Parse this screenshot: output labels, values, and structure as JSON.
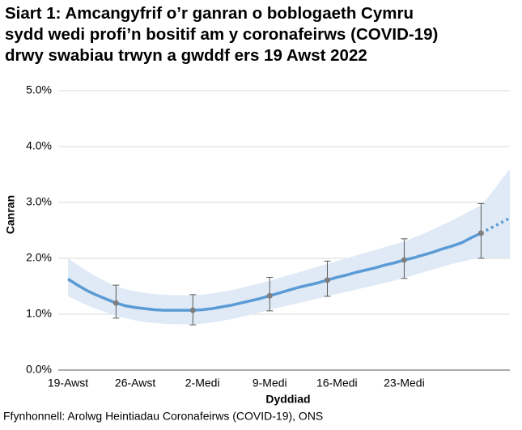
{
  "chart_data": {
    "type": "line",
    "title_lines": [
      "Siart 1: Amcangyfrif o’r ganran o boblogaeth Cymru",
      "sydd wedi profi’n bositif am y coronafeirws (COVID-19)",
      "drwy swabiau trwyn a gwddf ers 19 Awst 2022"
    ],
    "y_label": "Canran",
    "x_label": "Dyddiad",
    "source": "Ffynhonnell: Arolwg Heintiadau Coronafeirws (COVID-19), ONS",
    "categories": [
      "19-Awst",
      null,
      null,
      null,
      null,
      null,
      null,
      "26-Awst",
      null,
      null,
      null,
      null,
      null,
      null,
      "2-Medi",
      null,
      null,
      null,
      null,
      null,
      null,
      "9-Medi",
      null,
      null,
      null,
      null,
      null,
      null,
      "16-Medi",
      null,
      null,
      null,
      null,
      null,
      null,
      "23-Medi",
      null,
      null,
      null,
      null,
      null,
      null,
      null,
      null,
      null,
      null,
      null
    ],
    "ylim": [
      0,
      5
    ],
    "yticks": [
      {
        "value": 0,
        "label": "0.0%"
      },
      {
        "value": 1,
        "label": "1.0%"
      },
      {
        "value": 2,
        "label": "2.0%"
      },
      {
        "value": 3,
        "label": "3.0%"
      },
      {
        "value": 4,
        "label": "4.0%"
      },
      {
        "value": 5,
        "label": "5.0%"
      }
    ],
    "grid": true,
    "series": [
      {
        "color": "#5b9bd5",
        "style": "solid",
        "values": [
          1.63,
          1.52,
          1.42,
          1.34,
          1.27,
          1.2,
          1.15,
          1.12,
          1.1,
          1.08,
          1.07,
          1.07,
          1.07,
          1.07,
          1.08,
          1.1,
          1.13,
          1.16,
          1.2,
          1.24,
          1.28,
          1.33,
          1.38,
          1.43,
          1.48,
          1.52,
          1.56,
          1.61,
          1.66,
          1.7,
          1.75,
          1.79,
          1.83,
          1.88,
          1.92,
          1.97,
          2.01,
          2.06,
          2.11,
          2.17,
          2.22,
          2.28,
          2.37,
          2.45,
          null,
          null,
          null
        ]
      },
      {
        "color": "#5b9bd5",
        "style": "dotted",
        "values": [
          null,
          null,
          null,
          null,
          null,
          null,
          null,
          null,
          null,
          null,
          null,
          null,
          null,
          null,
          null,
          null,
          null,
          null,
          null,
          null,
          null,
          null,
          null,
          null,
          null,
          null,
          null,
          null,
          null,
          null,
          null,
          null,
          null,
          null,
          null,
          null,
          null,
          null,
          null,
          null,
          null,
          null,
          null,
          2.45,
          2.54,
          2.63,
          2.72
        ]
      }
    ],
    "band": {
      "color": "#dfeaf6",
      "upper": [
        2.0,
        1.88,
        1.77,
        1.67,
        1.58,
        1.5,
        1.45,
        1.41,
        1.38,
        1.36,
        1.35,
        1.34,
        1.34,
        1.34,
        1.35,
        1.37,
        1.4,
        1.43,
        1.47,
        1.51,
        1.55,
        1.6,
        1.65,
        1.7,
        1.75,
        1.8,
        1.85,
        1.9,
        1.95,
        2.0,
        2.05,
        2.1,
        2.15,
        2.2,
        2.25,
        2.3,
        2.37,
        2.44,
        2.52,
        2.6,
        2.68,
        2.77,
        2.86,
        2.95,
        3.15,
        3.38,
        3.6
      ],
      "lower": [
        1.32,
        1.24,
        1.16,
        1.09,
        1.03,
        0.97,
        0.93,
        0.89,
        0.86,
        0.84,
        0.83,
        0.82,
        0.82,
        0.82,
        0.83,
        0.85,
        0.88,
        0.91,
        0.95,
        0.99,
        1.03,
        1.08,
        1.12,
        1.16,
        1.2,
        1.24,
        1.28,
        1.32,
        1.36,
        1.4,
        1.44,
        1.48,
        1.52,
        1.56,
        1.6,
        1.65,
        1.7,
        1.75,
        1.8,
        1.85,
        1.9,
        1.94,
        1.98,
        2.0,
        2.01,
        2.01,
        2.01
      ]
    },
    "error_bars": {
      "color": "#7f7f7f",
      "values": [
        null,
        null,
        null,
        null,
        null,
        1.2,
        null,
        null,
        null,
        null,
        null,
        null,
        null,
        1.07,
        null,
        null,
        null,
        null,
        null,
        null,
        null,
        1.33,
        null,
        null,
        null,
        null,
        null,
        1.61,
        null,
        null,
        null,
        null,
        null,
        null,
        null,
        1.97,
        null,
        null,
        null,
        null,
        null,
        null,
        null,
        2.45,
        null,
        null,
        null
      ],
      "lower": [
        null,
        null,
        null,
        null,
        null,
        0.93,
        null,
        null,
        null,
        null,
        null,
        null,
        null,
        0.81,
        null,
        null,
        null,
        null,
        null,
        null,
        null,
        1.06,
        null,
        null,
        null,
        null,
        null,
        1.32,
        null,
        null,
        null,
        null,
        null,
        null,
        null,
        1.64,
        null,
        null,
        null,
        null,
        null,
        null,
        null,
        2.0,
        null,
        null,
        null
      ],
      "upper": [
        null,
        null,
        null,
        null,
        null,
        1.52,
        null,
        null,
        null,
        null,
        null,
        null,
        null,
        1.35,
        null,
        null,
        null,
        null,
        null,
        null,
        null,
        1.66,
        null,
        null,
        null,
        null,
        null,
        1.95,
        null,
        null,
        null,
        null,
        null,
        null,
        null,
        2.35,
        null,
        null,
        null,
        null,
        null,
        null,
        null,
        2.98,
        null,
        null,
        null
      ]
    }
  }
}
